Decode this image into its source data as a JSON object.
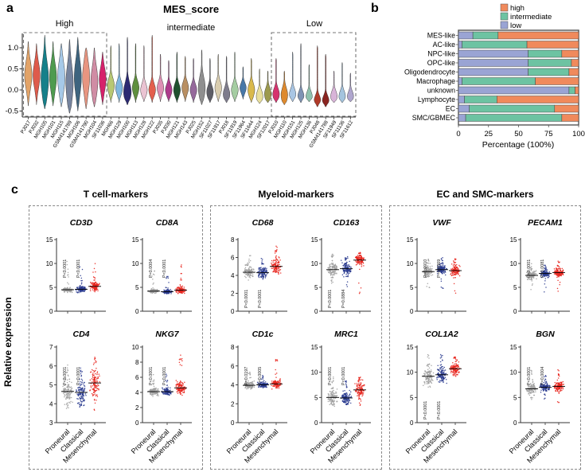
{
  "figure": {
    "panels": {
      "a": "a",
      "b": "b",
      "c": "c"
    }
  },
  "chart_data": [
    {
      "id": "panel_a",
      "type": "violin",
      "title": "MES_score",
      "group_labels": [
        "High",
        "intermediate",
        "Low"
      ],
      "y_ticks": [
        1.0,
        0.5,
        0.0,
        -0.5
      ],
      "ylim": [
        -0.6,
        1.35
      ],
      "samples": [
        {
          "label": "PJ017",
          "color": "#E2A368",
          "top": 1.15,
          "mode": 0.35,
          "sigma": 0.33,
          "bottom": -0.38,
          "width": 4.6
        },
        {
          "label": "PJ032",
          "color": "#DE5B4B",
          "top": 1.1,
          "mode": 0.35,
          "sigma": 0.3,
          "bottom": -0.35,
          "width": 4.4
        },
        {
          "label": "MGH105",
          "color": "#15808A",
          "top": 1.3,
          "mode": 0.25,
          "sigma": 0.42,
          "bottom": -0.45,
          "width": 4.8
        },
        {
          "label": "MGH101",
          "color": "#4E9B4F",
          "top": 1.15,
          "mode": 0.3,
          "sigma": 0.33,
          "bottom": -0.38,
          "width": 4.4
        },
        {
          "label": "MGH115",
          "color": "#A6C9E8",
          "top": 1.1,
          "mode": 0.3,
          "sigma": 0.38,
          "bottom": -0.4,
          "width": 4.6
        },
        {
          "label": "GSM4141789",
          "color": "#76849E",
          "top": 1.2,
          "mode": 0.15,
          "sigma": 0.45,
          "bottom": -0.55,
          "width": 4.6
        },
        {
          "label": "MGH106",
          "color": "#3E647E",
          "top": 1.25,
          "mode": 0.3,
          "sigma": 0.4,
          "bottom": -0.5,
          "width": 4.5
        },
        {
          "label": "GSM4141790",
          "color": "#E89580",
          "top": 1.0,
          "mode": 0.3,
          "sigma": 0.38,
          "bottom": -0.45,
          "width": 4.5
        },
        {
          "label": "MGH104",
          "color": "#D08CA4",
          "top": 1.0,
          "mode": 0.2,
          "sigma": 0.35,
          "bottom": -0.4,
          "width": 4.4
        },
        {
          "label": "SF11036",
          "color": "#D6216B",
          "top": 0.9,
          "mode": 0.25,
          "sigma": 0.28,
          "bottom": -0.35,
          "width": 4.3
        },
        {
          "label": "MGH66",
          "color": "#B8C873",
          "top": 1.05,
          "mode": 0.1,
          "sigma": 0.18,
          "bottom": -0.3,
          "width": 4.4
        },
        {
          "label": "MGH129",
          "color": "#7FB8E0",
          "top": 1.1,
          "mode": 0.05,
          "sigma": 0.16,
          "bottom": -0.3,
          "width": 4.4
        },
        {
          "label": "MGH100",
          "color": "#2C2A72",
          "top": 1.25,
          "mode": -0.05,
          "sigma": 0.22,
          "bottom": -0.35,
          "width": 4.8
        },
        {
          "label": "MGH113",
          "color": "#5F8F3E",
          "top": 1.1,
          "mode": 0.05,
          "sigma": 0.16,
          "bottom": -0.3,
          "width": 4.3
        },
        {
          "label": "MGH128",
          "color": "#EAC3D2",
          "top": 1.05,
          "mode": 0.0,
          "sigma": 0.15,
          "bottom": -0.28,
          "width": 4.2
        },
        {
          "label": "MGH122",
          "color": "#E35F4E",
          "top": 1.3,
          "mode": 0.0,
          "sigma": 0.15,
          "bottom": -0.3,
          "width": 4.3
        },
        {
          "label": "PJ035",
          "color": "#DE8FB4",
          "top": 0.85,
          "mode": 0.05,
          "sigma": 0.15,
          "bottom": -0.28,
          "width": 4.2
        },
        {
          "label": "PJ030",
          "color": "#AE3A8C",
          "top": 0.7,
          "mode": 0.0,
          "sigma": 0.14,
          "bottom": -0.28,
          "width": 4.2
        },
        {
          "label": "MGH121",
          "color": "#20512F",
          "top": 0.9,
          "mode": 0.0,
          "sigma": 0.15,
          "bottom": -0.3,
          "width": 4.3
        },
        {
          "label": "MGH143",
          "color": "#B98F62",
          "top": 0.8,
          "mode": 0.05,
          "sigma": 0.15,
          "bottom": -0.28,
          "width": 4.2
        },
        {
          "label": "PJ025",
          "color": "#96699C",
          "top": 0.75,
          "mode": 0.0,
          "sigma": 0.14,
          "bottom": -0.3,
          "width": 4.2
        },
        {
          "label": "MGH152",
          "color": "#8F8F8F",
          "top": 0.95,
          "mode": 0.05,
          "sigma": 0.25,
          "bottom": -0.35,
          "width": 4.4
        },
        {
          "label": "SF11027",
          "color": "#5E5E66",
          "top": 0.75,
          "mode": -0.05,
          "sigma": 0.15,
          "bottom": -0.3,
          "width": 4.2
        },
        {
          "label": "SF11917",
          "color": "#D9CDAF",
          "top": 0.85,
          "mode": 0.05,
          "sigma": 0.16,
          "bottom": -0.28,
          "width": 4.3
        },
        {
          "label": "PJ018",
          "color": "#7E7C8C",
          "top": 0.8,
          "mode": -0.1,
          "sigma": 0.15,
          "bottom": -0.3,
          "width": 4.2
        },
        {
          "label": "SF11919",
          "color": "#A5CDA2",
          "top": 0.9,
          "mode": 0.0,
          "sigma": 0.15,
          "bottom": -0.28,
          "width": 4.3
        },
        {
          "label": "SF11964",
          "color": "#4878A8",
          "top": 0.55,
          "mode": 0.05,
          "sigma": 0.12,
          "bottom": -0.22,
          "width": 4.0
        },
        {
          "label": "SF11644",
          "color": "#D9B94C",
          "top": 0.75,
          "mode": 0.0,
          "sigma": 0.16,
          "bottom": -0.3,
          "width": 4.3
        },
        {
          "label": "MGH124",
          "color": "#E8DF9C",
          "top": 0.5,
          "mode": -0.15,
          "sigma": 0.14,
          "bottom": -0.32,
          "width": 4.2
        },
        {
          "label": "SF12017",
          "color": "#9D9A4E",
          "top": 0.45,
          "mode": -0.1,
          "sigma": 0.15,
          "bottom": -0.3,
          "width": 4.2
        },
        {
          "label": "PJ010",
          "color": "#D6336E",
          "top": 0.75,
          "mode": -0.1,
          "sigma": 0.14,
          "bottom": -0.3,
          "width": 4.2
        },
        {
          "label": "MGH110",
          "color": "#DE8A2E",
          "top": 0.45,
          "mode": -0.12,
          "sigma": 0.17,
          "bottom": -0.35,
          "width": 4.2
        },
        {
          "label": "MGH151",
          "color": "#A9C6E4",
          "top": 0.9,
          "mode": -0.1,
          "sigma": 0.13,
          "bottom": -0.28,
          "width": 4.1
        },
        {
          "label": "MGH125",
          "color": "#7E93B4",
          "top": 1.1,
          "mode": -0.15,
          "sigma": 0.12,
          "bottom": -0.3,
          "width": 4.0
        },
        {
          "label": "MGH136",
          "color": "#8FC2AE",
          "top": 0.6,
          "mode": -0.15,
          "sigma": 0.12,
          "bottom": -0.28,
          "width": 4.0
        },
        {
          "label": "PJ048",
          "color": "#B03A28",
          "top": 1.05,
          "mode": -0.25,
          "sigma": 0.12,
          "bottom": -0.4,
          "width": 4.2
        },
        {
          "label": "GSM4141788",
          "color": "#8A2420",
          "top": 0.85,
          "mode": -0.25,
          "sigma": 0.12,
          "bottom": -0.4,
          "width": 4.2
        },
        {
          "label": "SF11949",
          "color": "#D8B4D8",
          "top": 0.45,
          "mode": -0.15,
          "sigma": 0.13,
          "bottom": -0.3,
          "width": 4.1
        },
        {
          "label": "SF11136",
          "color": "#A4C4DE",
          "top": 0.65,
          "mode": -0.15,
          "sigma": 0.13,
          "bottom": -0.3,
          "width": 4.1
        },
        {
          "label": "SF11612",
          "color": "#AFA6CE",
          "top": 0.4,
          "mode": -0.15,
          "sigma": 0.12,
          "bottom": -0.28,
          "width": 3.9
        }
      ]
    },
    {
      "id": "panel_b",
      "type": "bar",
      "stacked": true,
      "categories": [
        "MES-like",
        "AC-like",
        "NPC-like",
        "OPC-like",
        "Oligodendrocyte",
        "Macrophage",
        "unknown",
        "Lymphocyte",
        "EC",
        "SMC/GBMEC"
      ],
      "series": [
        {
          "name": "low",
          "color": "#9AA4D4",
          "values": [
            12,
            3,
            58,
            58,
            58,
            3,
            92,
            5,
            9,
            6
          ]
        },
        {
          "name": "intermediate",
          "color": "#6DC3A2",
          "values": [
            21,
            54,
            28,
            36,
            34,
            61,
            5,
            27,
            71,
            80
          ]
        },
        {
          "name": "high",
          "color": "#F08A5C",
          "values": [
            67,
            43,
            14,
            6,
            8,
            36,
            3,
            68,
            20,
            14
          ]
        }
      ],
      "legend_order": [
        "high",
        "intermediate",
        "low"
      ],
      "xlabel": "Percentage (100%)",
      "x_ticks": [
        0,
        25,
        50,
        75,
        100
      ],
      "xlim": [
        0,
        100
      ]
    },
    {
      "id": "panel_c",
      "type": "scatter",
      "ylabel": "Relative expression",
      "x_categories": [
        "Proneural",
        "Classical",
        "Mesenchymal"
      ],
      "group_colors": [
        "#A0A0A0",
        "#2A3B8F",
        "#E8251D"
      ],
      "sections": [
        {
          "title": "T cell-markers",
          "plots": [
            {
              "gene": "CD3D",
              "ylim": [
                0,
                15
              ],
              "yticks": [
                0,
                5,
                10,
                15
              ],
              "means": [
                4.5,
                4.6,
                5.2
              ],
              "sds": [
                0.25,
                0.3,
                0.45
              ],
              "tails": [
                10.5,
                9.5,
                10.3
              ],
              "pvalues": [
                "P<0.0001",
                "P<0.0001"
              ],
              "p_pos": "top"
            },
            {
              "gene": "CD8A",
              "ylim": [
                0,
                15
              ],
              "yticks": [
                0,
                5,
                10,
                15
              ],
              "means": [
                4.2,
                4.1,
                4.4
              ],
              "sds": [
                0.2,
                0.2,
                0.35
              ],
              "tails": [
                8.5,
                7.5,
                9.8
              ],
              "pvalues": [
                "P=0.0004",
                "P<0.0001"
              ],
              "p_pos": "top"
            },
            {
              "gene": "CD4",
              "ylim": [
                3,
                7
              ],
              "yticks": [
                3,
                4,
                5,
                6,
                7
              ],
              "means": [
                4.65,
                4.6,
                5.1
              ],
              "sds": [
                0.3,
                0.28,
                0.38
              ],
              "tails": [
                6.1,
                5.9,
                6.5
              ],
              "lows": [
                3.7,
                3.8,
                3.6
              ],
              "pvalues": [
                "P<0.0001",
                "P<0.0001"
              ],
              "p_pos": "top"
            },
            {
              "gene": "NKG7",
              "ylim": [
                0,
                10
              ],
              "yticks": [
                0,
                2,
                4,
                6,
                8,
                10
              ],
              "means": [
                4.1,
                4.1,
                4.6
              ],
              "sds": [
                0.25,
                0.25,
                0.4
              ],
              "tails": [
                6.8,
                6.5,
                9.3
              ],
              "pvalues": [
                "P<0.0001",
                "P<0.0001"
              ],
              "p_pos": "top"
            }
          ]
        },
        {
          "title": "Myeloid-markers",
          "plots": [
            {
              "gene": "CD68",
              "ylim": [
                0,
                8
              ],
              "yticks": [
                0,
                2,
                4,
                6,
                8
              ],
              "means": [
                4.35,
                4.3,
                5.0
              ],
              "sds": [
                0.35,
                0.32,
                0.42
              ],
              "tails": [
                6.3,
                6.1,
                7.3
              ],
              "pvalues": [
                "P<0.0001",
                "P<0.0001"
              ],
              "p_pos": "bottom"
            },
            {
              "gene": "CD163",
              "ylim": [
                0,
                15
              ],
              "yticks": [
                0,
                5,
                10,
                15
              ],
              "means": [
                8.7,
                8.9,
                10.7
              ],
              "sds": [
                0.8,
                0.7,
                0.55
              ],
              "tails": [
                12,
                11.5,
                12.3
              ],
              "lows": [
                5.5,
                4.5,
                3.5
              ],
              "pvalues": [
                "P<0.0001",
                "P=0.0884"
              ],
              "p_pos": "bottom"
            },
            {
              "gene": "CD1c",
              "ylim": [
                0,
                8
              ],
              "yticks": [
                0,
                2,
                4,
                6,
                8
              ],
              "means": [
                3.95,
                4.0,
                4.1
              ],
              "sds": [
                0.18,
                0.14,
                0.22
              ],
              "tails": [
                5.5,
                5.0,
                6.8
              ],
              "pvalues": [
                "P=0.0197",
                "P=0.0005"
              ],
              "p_pos": "top"
            },
            {
              "gene": "MRC1",
              "ylim": [
                0,
                15
              ],
              "yticks": [
                0,
                5,
                10,
                15
              ],
              "means": [
                5.0,
                4.9,
                6.5
              ],
              "sds": [
                0.7,
                0.6,
                0.8
              ],
              "tails": [
                9.5,
                8.5,
                9.2
              ],
              "lows": [
                3.5,
                3.5,
                3.2
              ],
              "pvalues": [
                "P<0.0001",
                "P<0.0001"
              ],
              "p_pos": "top"
            }
          ]
        },
        {
          "title": "EC and SMC-markers",
          "plots": [
            {
              "gene": "VWF",
              "ylim": [
                0,
                15
              ],
              "yticks": [
                0,
                5,
                10,
                15
              ],
              "means": [
                8.3,
                8.7,
                8.5
              ],
              "sds": [
                0.5,
                0.5,
                0.6
              ],
              "tails": [
                11,
                11.5,
                11
              ],
              "lows": [
                4,
                4,
                3.5
              ],
              "pvalues": [
                "P=0.0910",
                "P=0.8369"
              ],
              "p_pos": "top"
            },
            {
              "gene": "PECAM1",
              "ylim": [
                0,
                15
              ],
              "yticks": [
                0,
                5,
                10,
                15
              ],
              "means": [
                7.5,
                7.9,
                8.1
              ],
              "sds": [
                0.4,
                0.35,
                0.4
              ],
              "tails": [
                10,
                10,
                10.5
              ],
              "lows": [
                4.5,
                4,
                4
              ],
              "pvalues": [
                "P<0.0001",
                "P=0.0081"
              ],
              "p_pos": "top"
            },
            {
              "gene": "COL1A2",
              "ylim": [
                0,
                15
              ],
              "yticks": [
                0,
                5,
                10,
                15
              ],
              "means": [
                9.2,
                9.5,
                10.7
              ],
              "sds": [
                0.85,
                0.8,
                0.7
              ],
              "tails": [
                13.5,
                13.8,
                13.3
              ],
              "pvalues": [
                "P<0.0001",
                "P<0.0001"
              ],
              "p_pos": "bottom"
            },
            {
              "gene": "BGN",
              "ylim": [
                0,
                15
              ],
              "yticks": [
                0,
                5,
                10,
                15
              ],
              "means": [
                6.7,
                7.0,
                7.2
              ],
              "sds": [
                0.5,
                0.4,
                0.5
              ],
              "tails": [
                10.5,
                9.5,
                10.5
              ],
              "lows": [
                4.5,
                4.5,
                4
              ],
              "pvalues": [
                "P<0.0001",
                "P=0.0004"
              ],
              "p_pos": "top"
            }
          ]
        }
      ]
    }
  ]
}
